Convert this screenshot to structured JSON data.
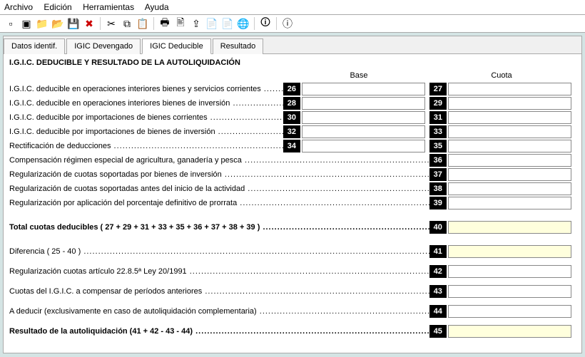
{
  "menubar": {
    "items": [
      "Archivo",
      "Edición",
      "Herramientas",
      "Ayuda"
    ]
  },
  "toolbar": {
    "icons": [
      "new",
      "open",
      "folder",
      "folder-open",
      "save",
      "delete",
      "cut",
      "copy",
      "paste",
      "print",
      "print2",
      "export",
      "pdf",
      "pdf2",
      "web",
      "help",
      "info"
    ]
  },
  "tabs": {
    "items": [
      {
        "label": "Datos identif.",
        "active": false
      },
      {
        "label": "IGIC Devengado",
        "active": false
      },
      {
        "label": "IGIC Deducible",
        "active": true
      },
      {
        "label": "Resultado",
        "active": false
      }
    ]
  },
  "panel": {
    "title": "I.G.I.C. DEDUCIBLE Y RESULTADO DE LA AUTOLIQUIDACIÓN",
    "headers": {
      "base": "Base",
      "cuota": "Cuota"
    },
    "rows": [
      {
        "label": "I.G.I.C. deducible en operaciones interiores bienes y servicios corrientes",
        "base_num": "26",
        "cuota_num": "27"
      },
      {
        "label": "I.G.I.C. deducible en operaciones interiores bienes de inversión",
        "base_num": "28",
        "cuota_num": "29"
      },
      {
        "label": "I.G.I.C. deducible por importaciones de bienes corrientes",
        "base_num": "30",
        "cuota_num": "31"
      },
      {
        "label": "I.G.I.C. deducible por importaciones de bienes de inversión",
        "base_num": "32",
        "cuota_num": "33"
      },
      {
        "label": "Rectificación de deducciones",
        "base_num": "34",
        "cuota_num": "35"
      }
    ],
    "cuota_only_rows": [
      {
        "label": "Compensación régimen especial de agricultura, ganadería y pesca",
        "cuota_num": "36"
      },
      {
        "label": "Regularización de cuotas soportadas por bienes de inversión",
        "cuota_num": "37"
      },
      {
        "label": "Regularización de cuotas soportadas antes del inicio de la actividad",
        "cuota_num": "38"
      },
      {
        "label": "Regularización por aplicación del porcentaje definitivo de prorrata",
        "cuota_num": "39"
      }
    ],
    "total_row": {
      "label": "Total cuotas deducibles ( 27 + 29 + 31 + 33 + 35 + 36 + 37 + 38 + 39 )",
      "cuota_num": "40"
    },
    "result_rows": [
      {
        "label": "Diferencia ( 25 - 40 )",
        "cuota_num": "41",
        "highlight": true
      },
      {
        "label": "Regularización cuotas artículo 22.8.5ª Ley 20/1991",
        "cuota_num": "42"
      },
      {
        "label": "Cuotas del I.G.I.C. a compensar de períodos anteriores",
        "cuota_num": "43"
      },
      {
        "label": "A deducir (exclusivamente en caso de autoliquidación complementaria)",
        "cuota_num": "44"
      },
      {
        "label": "Resultado de la autoliquidación (41 + 42 - 43 - 44)",
        "cuota_num": "45",
        "bold": true,
        "highlight": true
      }
    ]
  },
  "icons_glyph": {
    "new": "▫",
    "open": "▣",
    "folder": "📁",
    "folder-open": "📂",
    "save": "💾",
    "delete": "✖",
    "cut": "✂",
    "copy": "⧉",
    "paste": "📋",
    "print": "🖶",
    "print2": "🖹",
    "export": "⇪",
    "pdf": "📄",
    "pdf2": "📄",
    "web": "🌐",
    "help": "🛈",
    "info": "ⓘ"
  }
}
